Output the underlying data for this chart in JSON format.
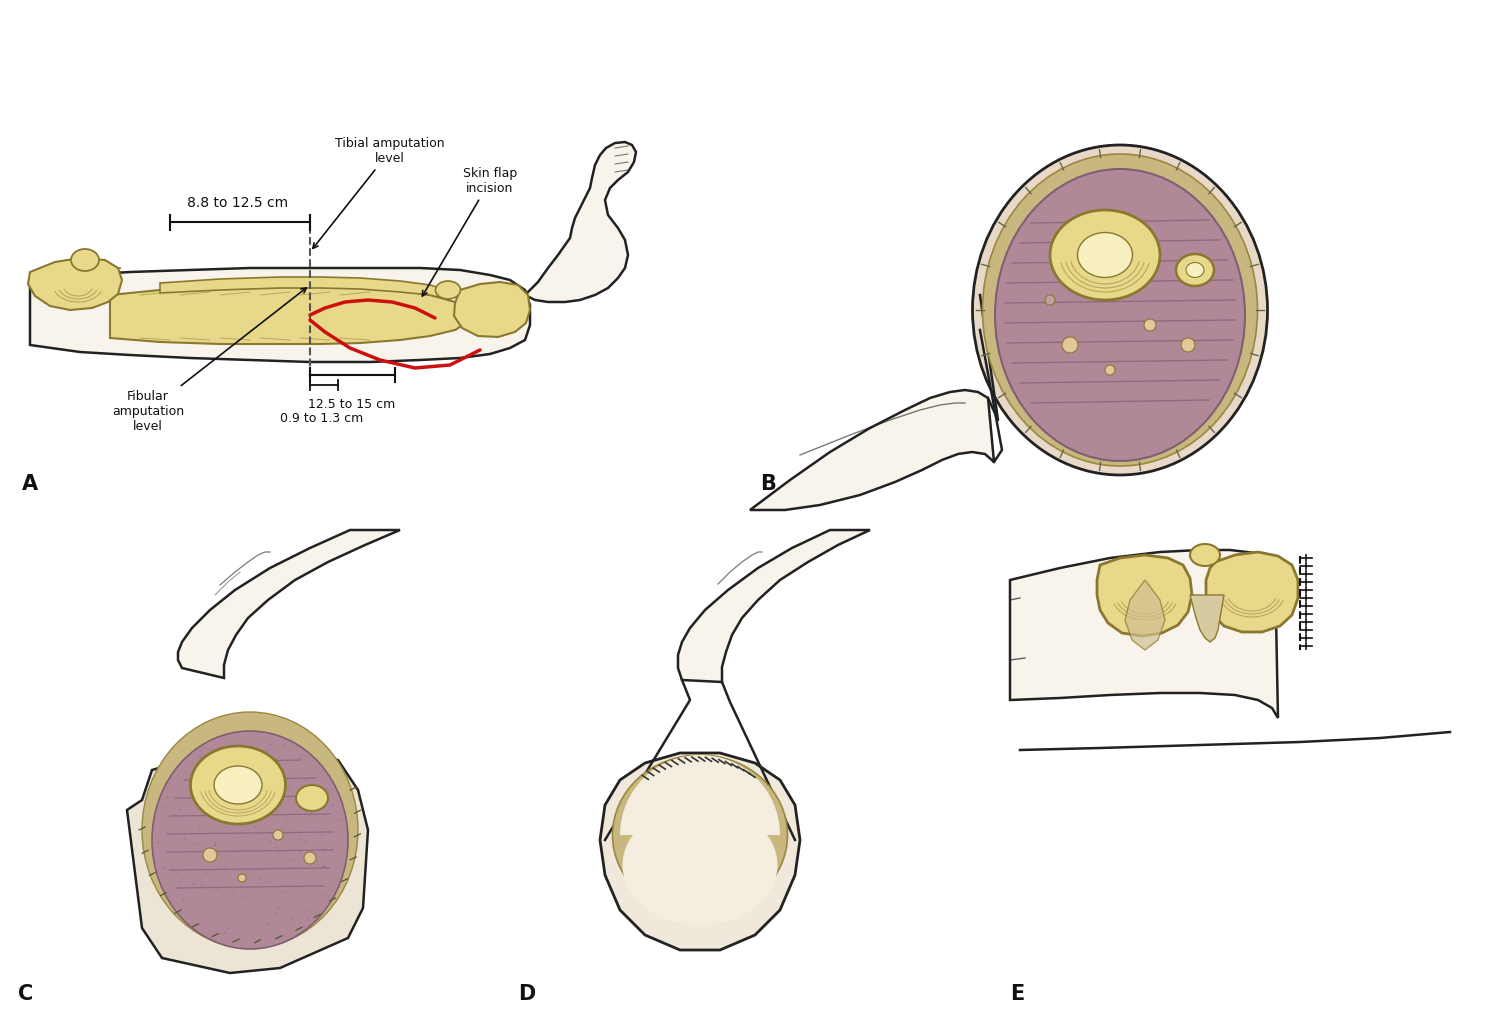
{
  "bg_color": "#ffffff",
  "label_A": "A",
  "label_B": "B",
  "label_C": "C",
  "label_D": "D",
  "label_E": "E",
  "text_tibial": "Tibial amputation\nlevel",
  "text_skin_flap": "Skin flap\nincision",
  "text_fibular": "Fibular\namputation\nlevel",
  "text_88_125": "8.8 to 12.5 cm",
  "text_125_15": "12.5 to 15 cm",
  "text_09_13": "0.9 to 1.3 cm",
  "bone_color": "#e8d88a",
  "bone_color2": "#d4c070",
  "bone_outline": "#8a7830",
  "muscle_color": "#b08898",
  "muscle_dark": "#8a6068",
  "skin_color": "#f8f4ec",
  "skin_outline": "#222222",
  "red_line_color": "#cc1010",
  "annotation_color": "#111111",
  "suture_color": "#444444",
  "fascia_color": "#c8b880",
  "fat_color": "#e0c898"
}
